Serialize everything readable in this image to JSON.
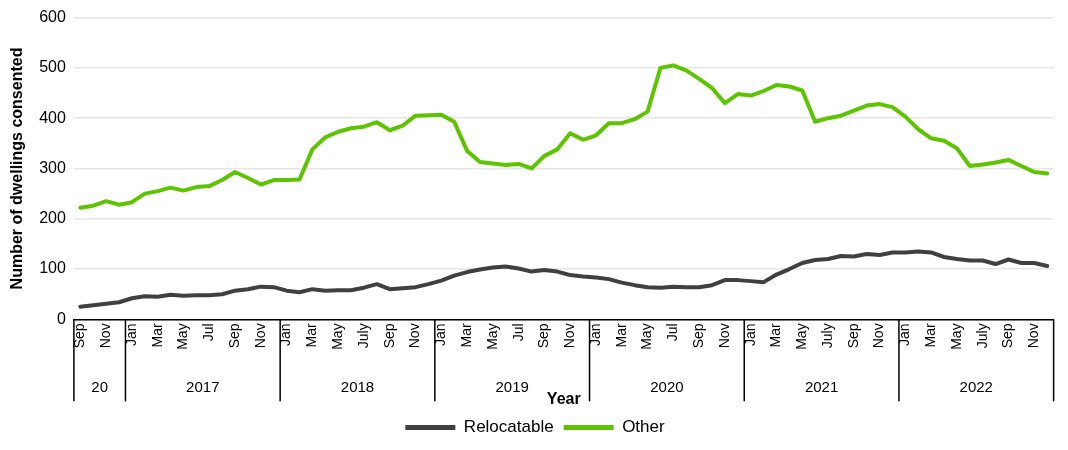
{
  "chart_data": {
    "type": "line",
    "xlabel": "Year",
    "ylabel": "Number of dwellings consented",
    "categories": [
      "Sep",
      null,
      "Nov",
      null,
      "Jan",
      null,
      "Mar",
      null,
      "May",
      null,
      "Jul",
      null,
      "Sep",
      null,
      "Nov",
      null,
      "Jan",
      null,
      "Mar",
      null,
      "May",
      null,
      "July",
      null,
      "Sep",
      null,
      "Nov",
      null,
      "Jan",
      null,
      "Mar",
      null,
      "May",
      null,
      "Jul",
      null,
      "Sep",
      null,
      "Nov",
      null,
      "Jan",
      null,
      "Mar",
      null,
      "May",
      null,
      "Jul",
      null,
      "Sep",
      null,
      "Nov",
      null,
      "Jan",
      null,
      "Mar",
      null,
      "May",
      null,
      "July",
      null,
      "Sep",
      null,
      "Nov",
      null,
      "Jan",
      null,
      "Mar",
      null,
      "May",
      null,
      "July",
      null,
      "Sep",
      null,
      "Nov",
      null
    ],
    "annotations": [
      "20",
      "2017",
      "2018",
      "2019",
      "2020",
      "2021",
      "2022"
    ],
    "series": [
      {
        "name": "Relocatable",
        "color": "#404040",
        "values": [
          25,
          28,
          31,
          34,
          42,
          46,
          45,
          49,
          47,
          48,
          48,
          50,
          57,
          60,
          65,
          64,
          57,
          54,
          60,
          57,
          58,
          58,
          63,
          70,
          60,
          62,
          64,
          70,
          77,
          87,
          94,
          99,
          103,
          105,
          101,
          95,
          98,
          95,
          88,
          85,
          83,
          80,
          73,
          68,
          64,
          63,
          65,
          64,
          64,
          68,
          78,
          78,
          76,
          74,
          89,
          100,
          112,
          118,
          120,
          126,
          125,
          130,
          128,
          133,
          133,
          135,
          133,
          124,
          120,
          117,
          117,
          110,
          119,
          112,
          112,
          106
        ]
      },
      {
        "name": "Other",
        "color": "#5cc400",
        "values": [
          222,
          226,
          235,
          228,
          233,
          250,
          255,
          262,
          256,
          263,
          265,
          277,
          293,
          281,
          268,
          277,
          277,
          278,
          338,
          362,
          373,
          380,
          383,
          392,
          376,
          385,
          405,
          406,
          407,
          393,
          335,
          313,
          310,
          307,
          309,
          300,
          325,
          338,
          370,
          357,
          366,
          390,
          390,
          398,
          413,
          500,
          505,
          495,
          478,
          460,
          430,
          448,
          445,
          454,
          466,
          463,
          455,
          393,
          400,
          405,
          415,
          425,
          428,
          422,
          403,
          378,
          360,
          355,
          340,
          305,
          308,
          312,
          317,
          305,
          293,
          290
        ]
      }
    ],
    "ylim": [
      0,
      600
    ],
    "yticks": [
      0,
      100,
      200,
      300,
      400,
      500,
      600
    ],
    "grid": "y",
    "legend": "bottom",
    "marker": "none",
    "line_style": "solid"
  }
}
